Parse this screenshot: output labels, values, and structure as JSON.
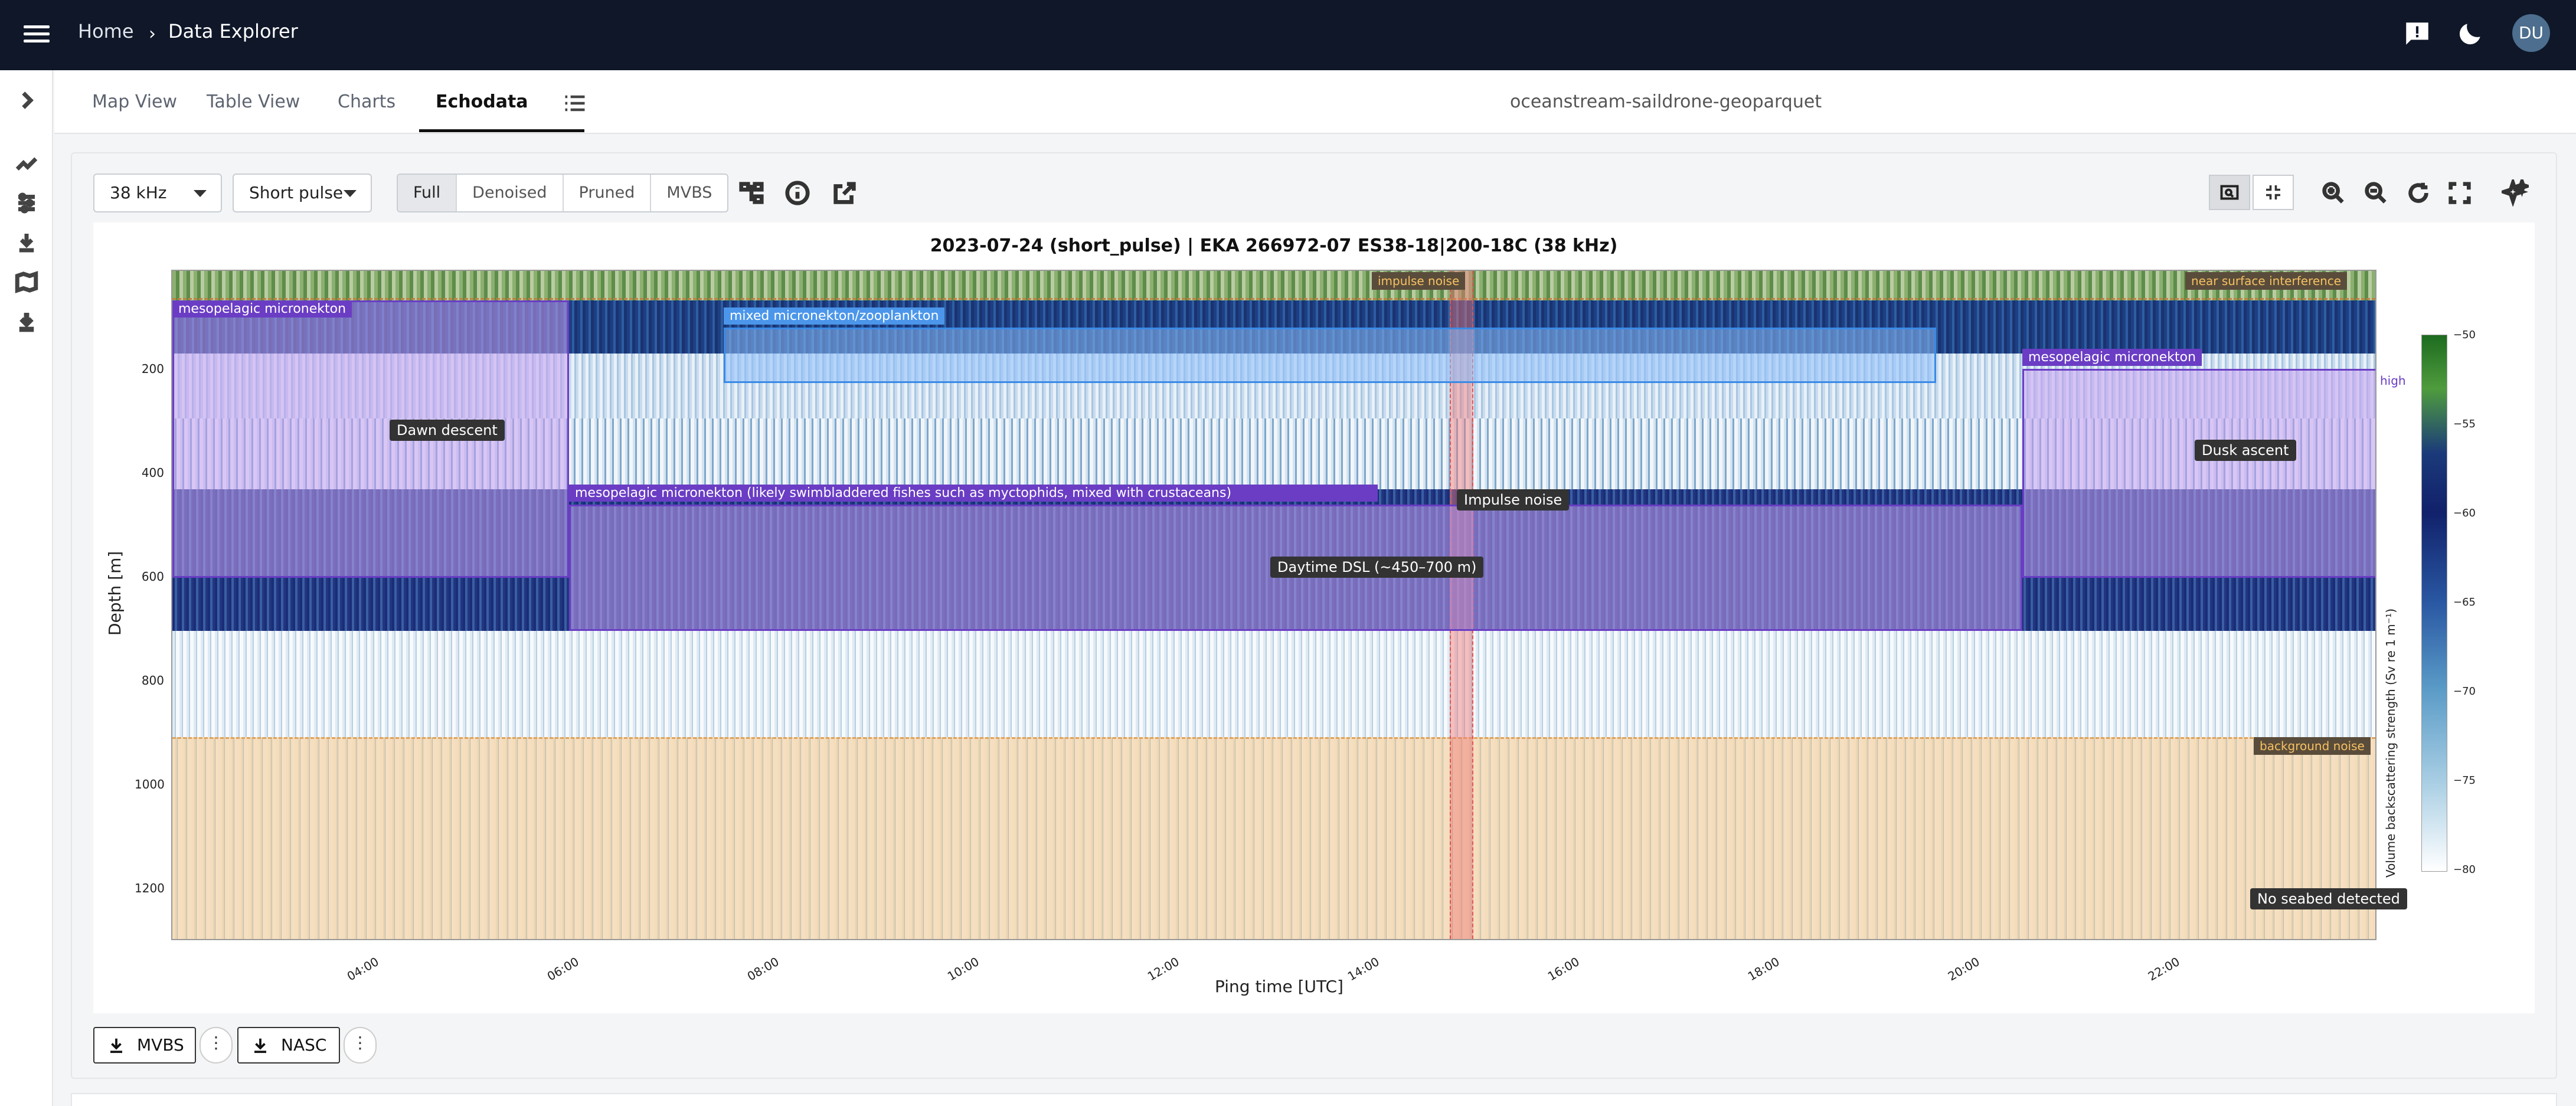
{
  "header": {
    "breadcrumbs": [
      "Home",
      "Data Explorer"
    ],
    "avatar_initials": "DU"
  },
  "tabs": [
    {
      "label": "Map View"
    },
    {
      "label": "Table View"
    },
    {
      "label": "Charts"
    },
    {
      "label": "Echodata",
      "active": true
    }
  ],
  "dataset_name": "oceanstream-saildrone-geoparquet",
  "toolbar": {
    "frequency": "38 kHz",
    "pulse": "Short pulse",
    "modes": [
      "Full",
      "Denoised",
      "Pruned",
      "MVBS"
    ],
    "active_mode": "Full"
  },
  "chart_data": {
    "type": "heatmap",
    "title": "2023-07-24 (short_pulse) | EKA 266972-07 ES38-18|200-18C (38 kHz)",
    "xlabel": "Ping time [UTC]",
    "ylabel": "Depth [m]",
    "x_ticks": [
      "04:00",
      "06:00",
      "08:00",
      "10:00",
      "12:00",
      "14:00",
      "16:00",
      "18:00",
      "20:00",
      "22:00"
    ],
    "y_ticks": [
      "200",
      "400",
      "600",
      "800",
      "1000",
      "1200"
    ],
    "colorbar": {
      "label": "Volume backscattering strength (Sv re 1 m⁻¹)",
      "ticks": [
        "−50",
        "−55",
        "−60",
        "−65",
        "−70",
        "−75",
        "−80"
      ],
      "range": [
        -80,
        -50
      ]
    },
    "regions": [
      {
        "label": "mesopelagic micronekton",
        "kind": "purple"
      },
      {
        "label": "mixed micronekton/zooplankton",
        "kind": "blue"
      },
      {
        "label": "mesopelagic micronekton",
        "kind": "purple"
      },
      {
        "label": "mesopelagic micronekton (likely swimbladdered fishes such as myctophids, mixed with crustaceans)",
        "kind": "purple"
      }
    ],
    "annotations": [
      "Dawn descent",
      "Impulse noise",
      "Daytime DSL (~450–700 m)",
      "Dusk ascent",
      "No seabed detected"
    ],
    "overlay_labels": [
      "impulse noise",
      "near surface interference",
      "background noise"
    ],
    "side_label": "high"
  },
  "downloads": [
    {
      "label": "MVBS"
    },
    {
      "label": "NASC"
    }
  ]
}
